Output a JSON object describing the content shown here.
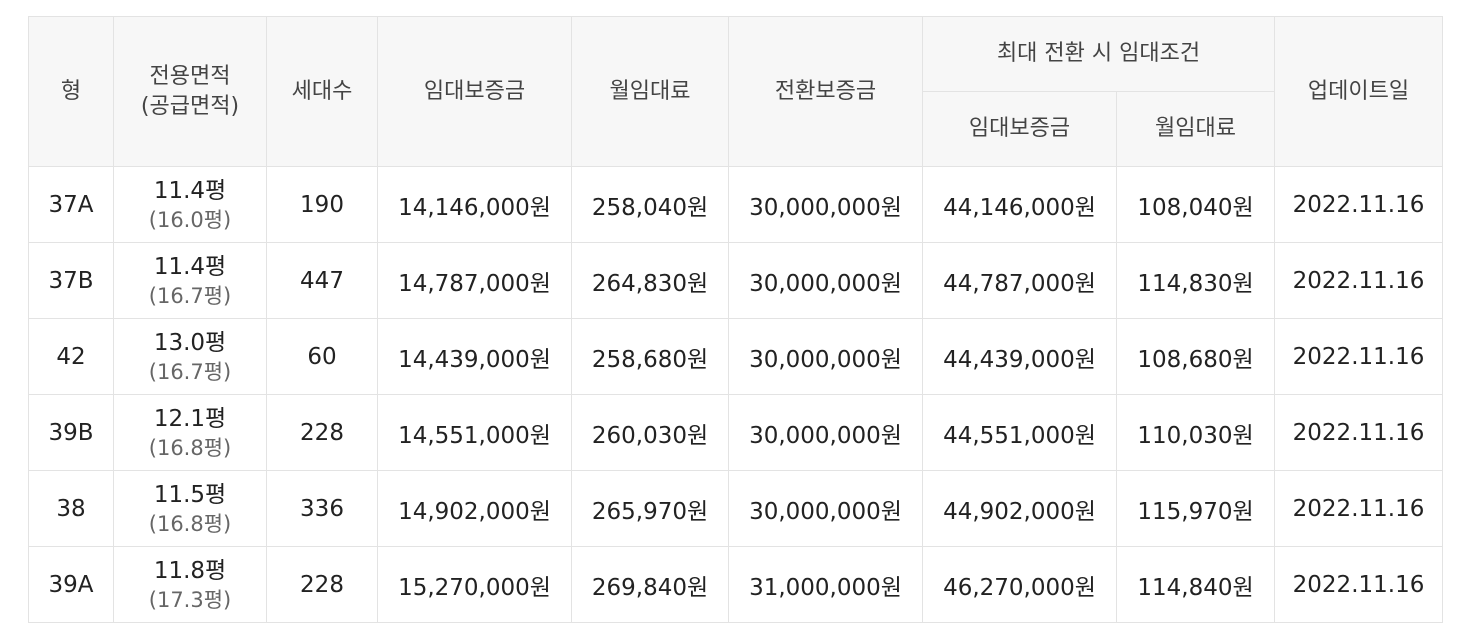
{
  "header": {
    "type": "형",
    "area_line1": "전용면적",
    "area_line2": "(공급면적)",
    "households": "세대수",
    "deposit": "임대보증금",
    "monthly_rent": "월임대료",
    "conversion_deposit": "전환보증금",
    "max_conversion_group": "최대 전환 시 임대조건",
    "max_deposit": "임대보증금",
    "max_monthly_rent": "월임대료",
    "updated": "업데이트일"
  },
  "rows": [
    {
      "type": "37A",
      "area": "11.4평",
      "supply": "(16.0평)",
      "households": "190",
      "deposit": "14,146,000원",
      "rent": "258,040원",
      "conversion": "30,000,000원",
      "max_deposit": "44,146,000원",
      "max_rent": "108,040원",
      "updated": "2022.11.16"
    },
    {
      "type": "37B",
      "area": "11.4평",
      "supply": "(16.7평)",
      "households": "447",
      "deposit": "14,787,000원",
      "rent": "264,830원",
      "conversion": "30,000,000원",
      "max_deposit": "44,787,000원",
      "max_rent": "114,830원",
      "updated": "2022.11.16"
    },
    {
      "type": "42",
      "area": "13.0평",
      "supply": "(16.7평)",
      "households": "60",
      "deposit": "14,439,000원",
      "rent": "258,680원",
      "conversion": "30,000,000원",
      "max_deposit": "44,439,000원",
      "max_rent": "108,680원",
      "updated": "2022.11.16"
    },
    {
      "type": "39B",
      "area": "12.1평",
      "supply": "(16.8평)",
      "households": "228",
      "deposit": "14,551,000원",
      "rent": "260,030원",
      "conversion": "30,000,000원",
      "max_deposit": "44,551,000원",
      "max_rent": "110,030원",
      "updated": "2022.11.16"
    },
    {
      "type": "38",
      "area": "11.5평",
      "supply": "(16.8평)",
      "households": "336",
      "deposit": "14,902,000원",
      "rent": "265,970원",
      "conversion": "30,000,000원",
      "max_deposit": "44,902,000원",
      "max_rent": "115,970원",
      "updated": "2022.11.16"
    },
    {
      "type": "39A",
      "area": "11.8평",
      "supply": "(17.3평)",
      "households": "228",
      "deposit": "15,270,000원",
      "rent": "269,840원",
      "conversion": "31,000,000원",
      "max_deposit": "46,270,000원",
      "max_rent": "114,840원",
      "updated": "2022.11.16"
    }
  ]
}
